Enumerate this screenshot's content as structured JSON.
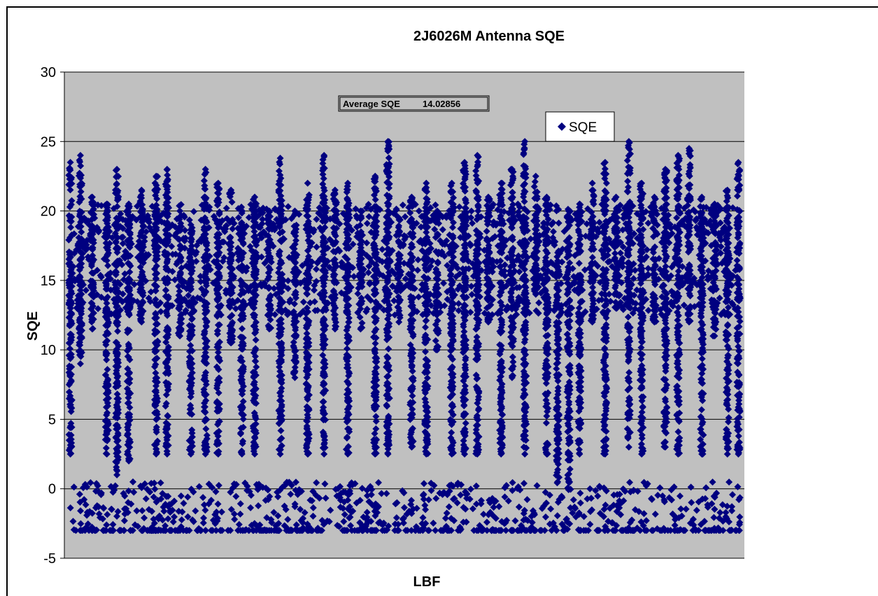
{
  "chart_data": {
    "type": "scatter",
    "title": "2J6026M Antenna SQE",
    "xlabel": "LBF",
    "ylabel": "SQE",
    "ylim": [
      -5,
      30
    ],
    "yticks": [
      "-5",
      "0",
      "5",
      "10",
      "15",
      "20",
      "25",
      "30"
    ],
    "grid": true,
    "legend": "top-right",
    "plot_background": "#c0c0c0",
    "marker_color": "#000080",
    "annotation": {
      "label": "Average SQE",
      "value": "14.02856"
    },
    "series": [
      {
        "name": "SQE",
        "marker": "diamond",
        "bursts": [
          {
            "x": 2,
            "min": 2.5,
            "max": 23.5
          },
          {
            "x": 13,
            "min": 9.0,
            "max": 24.0
          },
          {
            "x": 26,
            "min": 11.5,
            "max": 21.0
          },
          {
            "x": 42,
            "min": 2.5,
            "max": 20.5
          },
          {
            "x": 53,
            "min": 1.0,
            "max": 23.0
          },
          {
            "x": 66,
            "min": 2.0,
            "max": 20.5
          },
          {
            "x": 80,
            "min": 12.0,
            "max": 21.5
          },
          {
            "x": 96,
            "min": 2.5,
            "max": 22.5
          },
          {
            "x": 108,
            "min": 2.5,
            "max": 23.0
          },
          {
            "x": 122,
            "min": 11.0,
            "max": 20.0
          },
          {
            "x": 134,
            "min": 2.5,
            "max": 19.0
          },
          {
            "x": 150,
            "min": 2.5,
            "max": 23.0
          },
          {
            "x": 164,
            "min": 2.5,
            "max": 22.0
          },
          {
            "x": 178,
            "min": 10.5,
            "max": 21.5
          },
          {
            "x": 190,
            "min": 2.5,
            "max": 20.0
          },
          {
            "x": 204,
            "min": 2.5,
            "max": 21.0
          },
          {
            "x": 220,
            "min": 11.5,
            "max": 20.0
          },
          {
            "x": 232,
            "min": 2.5,
            "max": 23.8
          },
          {
            "x": 248,
            "min": 8.0,
            "max": 20.0
          },
          {
            "x": 262,
            "min": 2.5,
            "max": 22.0
          },
          {
            "x": 280,
            "min": 2.5,
            "max": 24.0
          },
          {
            "x": 292,
            "min": 11.5,
            "max": 21.5
          },
          {
            "x": 306,
            "min": 2.5,
            "max": 22.0
          },
          {
            "x": 320,
            "min": 11.5,
            "max": 20.0
          },
          {
            "x": 336,
            "min": 2.5,
            "max": 22.5
          },
          {
            "x": 350,
            "min": 2.5,
            "max": 25.0
          },
          {
            "x": 362,
            "min": 12.0,
            "max": 19.5
          },
          {
            "x": 376,
            "min": 3.0,
            "max": 21.0
          },
          {
            "x": 392,
            "min": 2.5,
            "max": 22.0
          },
          {
            "x": 404,
            "min": 10.0,
            "max": 20.0
          },
          {
            "x": 420,
            "min": 2.5,
            "max": 22.0
          },
          {
            "x": 434,
            "min": 2.5,
            "max": 23.5
          },
          {
            "x": 448,
            "min": 2.5,
            "max": 24.0
          },
          {
            "x": 460,
            "min": 12.0,
            "max": 21.0
          },
          {
            "x": 474,
            "min": 2.5,
            "max": 22.0
          },
          {
            "x": 486,
            "min": 8.0,
            "max": 23.0
          },
          {
            "x": 500,
            "min": 2.5,
            "max": 25.0
          },
          {
            "x": 512,
            "min": 14.0,
            "max": 22.5
          },
          {
            "x": 524,
            "min": 2.5,
            "max": 21.0
          },
          {
            "x": 536,
            "min": 0.5,
            "max": 17.0
          },
          {
            "x": 548,
            "min": 0.5,
            "max": 20.0
          },
          {
            "x": 560,
            "min": 2.5,
            "max": 20.5
          },
          {
            "x": 574,
            "min": 12.0,
            "max": 22.0
          },
          {
            "x": 588,
            "min": 2.5,
            "max": 23.5
          },
          {
            "x": 600,
            "min": 13.0,
            "max": 21.0
          },
          {
            "x": 614,
            "min": 3.0,
            "max": 25.0
          },
          {
            "x": 628,
            "min": 2.5,
            "max": 22.0
          },
          {
            "x": 642,
            "min": 12.0,
            "max": 21.0
          },
          {
            "x": 654,
            "min": 3.0,
            "max": 23.0
          },
          {
            "x": 668,
            "min": 2.5,
            "max": 24.0
          },
          {
            "x": 680,
            "min": 12.0,
            "max": 24.5
          },
          {
            "x": 694,
            "min": 2.5,
            "max": 21.0
          },
          {
            "x": 708,
            "min": 11.0,
            "max": 20.5
          },
          {
            "x": 722,
            "min": 2.5,
            "max": 21.5
          },
          {
            "x": 734,
            "min": 2.5,
            "max": 23.5
          }
        ]
      }
    ],
    "floor_band": {
      "min": -3.0,
      "max": 0.5
    }
  }
}
